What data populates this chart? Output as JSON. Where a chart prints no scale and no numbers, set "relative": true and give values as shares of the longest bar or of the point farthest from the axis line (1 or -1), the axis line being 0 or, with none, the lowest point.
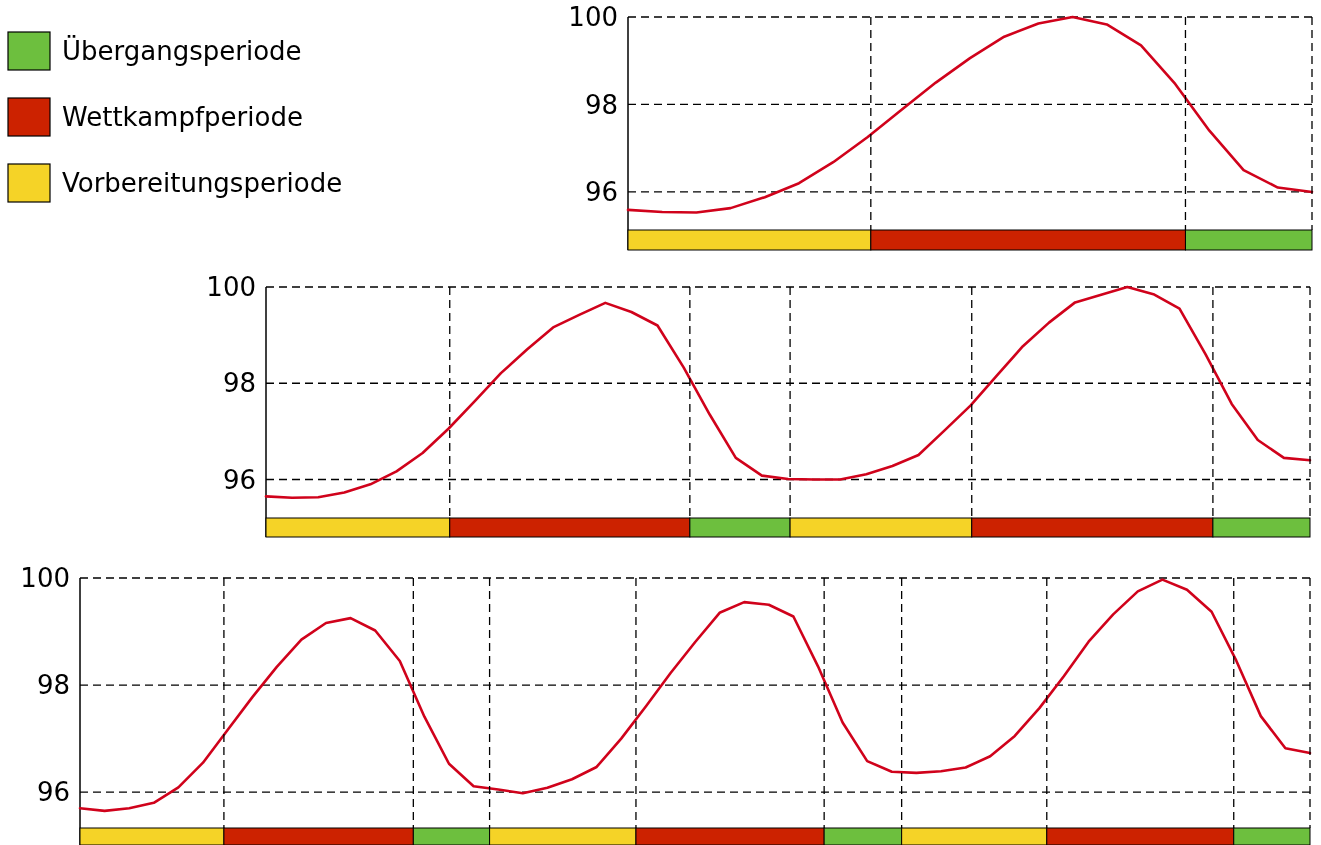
{
  "chart_data": [
    {
      "type": "line",
      "grid": "y",
      "tick_labels": "y",
      "categories": [
        null,
        null,
        null,
        null,
        null,
        null,
        null,
        null,
        null,
        null,
        null,
        null,
        null,
        null,
        null,
        null,
        null,
        null,
        null,
        null,
        null
      ],
      "ylim": [
        95.13,
        100
      ],
      "yticks": [
        96,
        98,
        100
      ],
      "series": [
        {
          "color": "#d0021b",
          "values": [
            95.59,
            95.54,
            95.53,
            95.63,
            95.88,
            96.2,
            96.68,
            97.25,
            97.88,
            98.5,
            99.06,
            99.55,
            99.85,
            100,
            99.83,
            99.35,
            98.47,
            97.4,
            96.5,
            96.1,
            96.0
          ]
        }
      ]
    },
    {
      "type": "bar",
      "orientation": "horizontal",
      "stacked": true,
      "relative": true,
      "legend": "left",
      "categories": [
        null
      ],
      "series": [
        {
          "name": "Vorbereitungsperiode",
          "color": "#f5d327",
          "values": [
            0.355
          ]
        },
        {
          "name": "Wettkampfperiode",
          "color": "#cc2200",
          "values": [
            0.46
          ]
        },
        {
          "name": "Übergangsperiode",
          "color": "#6dbf3e",
          "values": [
            0.185
          ]
        }
      ]
    },
    {
      "type": "line",
      "grid": "y",
      "tick_labels": "y",
      "categories": [
        null,
        null,
        null,
        null,
        null,
        null,
        null,
        null,
        null,
        null,
        null,
        null,
        null,
        null,
        null,
        null,
        null,
        null,
        null,
        null,
        null,
        null,
        null,
        null,
        null,
        null,
        null,
        null,
        null,
        null,
        null,
        null,
        null,
        null,
        null,
        null,
        null,
        null,
        null,
        null,
        null
      ],
      "ylim": [
        95.2,
        100
      ],
      "yticks": [
        96,
        98,
        100
      ],
      "series": [
        {
          "color": "#d0021b",
          "values": [
            95.65,
            95.62,
            95.63,
            95.73,
            95.9,
            96.17,
            96.55,
            97.06,
            97.63,
            98.21,
            98.7,
            99.16,
            99.42,
            99.67,
            99.48,
            99.2,
            98.33,
            97.35,
            96.45,
            96.08,
            96.01,
            96.0,
            96.0,
            96.11,
            96.28,
            96.51,
            97.02,
            97.54,
            98.16,
            98.77,
            99.26,
            99.68,
            99.84,
            100,
            99.85,
            99.55,
            98.6,
            97.57,
            96.82,
            96.45,
            96.4
          ]
        }
      ]
    },
    {
      "type": "bar",
      "orientation": "horizontal",
      "stacked": true,
      "relative": true,
      "categories": [
        null
      ],
      "series": [
        {
          "color": "#f5d327",
          "values": [
            0.176
          ]
        },
        {
          "color": "#cc2200",
          "values": [
            0.23
          ]
        },
        {
          "color": "#6dbf3e",
          "values": [
            0.096
          ]
        },
        {
          "color": "#f5d327",
          "values": [
            0.174
          ]
        },
        {
          "color": "#cc2200",
          "values": [
            0.231
          ]
        },
        {
          "color": "#6dbf3e",
          "values": [
            0.093
          ]
        }
      ]
    },
    {
      "type": "line",
      "grid": "y",
      "tick_labels": "y",
      "categories": [
        null,
        null,
        null,
        null,
        null,
        null,
        null,
        null,
        null,
        null,
        null,
        null,
        null,
        null,
        null,
        null,
        null,
        null,
        null,
        null,
        null,
        null,
        null,
        null,
        null,
        null,
        null,
        null,
        null,
        null,
        null,
        null,
        null,
        null,
        null,
        null,
        null,
        null,
        null,
        null,
        null,
        null,
        null,
        null,
        null,
        null,
        null,
        null,
        null,
        null,
        null
      ],
      "ylim": [
        95.33,
        100
      ],
      "yticks": [
        96,
        98,
        100
      ],
      "series": [
        {
          "color": "#d0021b",
          "values": [
            95.7,
            95.65,
            95.7,
            95.8,
            96.09,
            96.55,
            97.16,
            97.77,
            98.34,
            98.85,
            99.16,
            99.25,
            99.02,
            98.45,
            97.41,
            96.53,
            96.11,
            96.05,
            95.98,
            96.08,
            96.24,
            96.47,
            97.0,
            97.6,
            98.22,
            98.8,
            99.35,
            99.55,
            99.5,
            99.28,
            98.35,
            97.3,
            96.58,
            96.38,
            96.36,
            96.39,
            96.46,
            96.67,
            97.05,
            97.57,
            98.17,
            98.81,
            99.32,
            99.75,
            99.97,
            99.78,
            99.37,
            98.46,
            97.42,
            96.82,
            96.73
          ]
        }
      ]
    },
    {
      "type": "bar",
      "orientation": "horizontal",
      "stacked": true,
      "relative": true,
      "categories": [
        null
      ],
      "series": [
        {
          "color": "#f5d327",
          "values": [
            0.117
          ]
        },
        {
          "color": "#cc2200",
          "values": [
            0.154
          ]
        },
        {
          "color": "#6dbf3e",
          "values": [
            0.062
          ]
        },
        {
          "color": "#f5d327",
          "values": [
            0.119
          ]
        },
        {
          "color": "#cc2200",
          "values": [
            0.153
          ]
        },
        {
          "color": "#6dbf3e",
          "values": [
            0.063
          ]
        },
        {
          "color": "#f5d327",
          "values": [
            0.118
          ]
        },
        {
          "color": "#cc2200",
          "values": [
            0.152
          ]
        },
        {
          "color": "#6dbf3e",
          "values": [
            0.062
          ]
        }
      ]
    }
  ]
}
